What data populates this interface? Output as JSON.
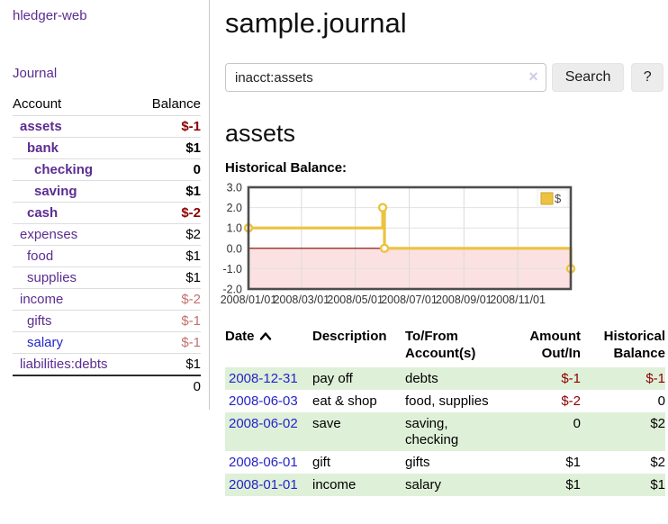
{
  "brand": "hledger-web",
  "nav": {
    "journal": "Journal"
  },
  "sidebar": {
    "account_col": "Account",
    "balance_col": "Balance",
    "accounts": [
      {
        "name": "assets",
        "depth": 1,
        "bold": true,
        "balance": "$-1",
        "tone": "neg-strong",
        "link_color": "purple"
      },
      {
        "name": "bank",
        "depth": 2,
        "bold": true,
        "balance": "$1",
        "tone": "normal",
        "link_color": "purple"
      },
      {
        "name": "checking",
        "depth": 3,
        "bold": true,
        "balance": "0",
        "tone": "normal",
        "link_color": "purple"
      },
      {
        "name": "saving",
        "depth": 3,
        "bold": true,
        "balance": "$1",
        "tone": "normal",
        "link_color": "purple"
      },
      {
        "name": "cash",
        "depth": 2,
        "bold": true,
        "balance": "$-2",
        "tone": "neg-strong",
        "link_color": "purple"
      },
      {
        "name": "expenses",
        "depth": 1,
        "bold": false,
        "balance": "$2",
        "tone": "normal",
        "link_color": "purple"
      },
      {
        "name": "food",
        "depth": 2,
        "bold": false,
        "balance": "$1",
        "tone": "normal",
        "link_color": "purple"
      },
      {
        "name": "supplies",
        "depth": 2,
        "bold": false,
        "balance": "$1",
        "tone": "normal",
        "link_color": "purple"
      },
      {
        "name": "income",
        "depth": 1,
        "bold": false,
        "balance": "$-2",
        "tone": "neg-soft",
        "link_color": "purple"
      },
      {
        "name": "gifts",
        "depth": 2,
        "bold": false,
        "balance": "$-1",
        "tone": "neg-soft",
        "link_color": "purple"
      },
      {
        "name": "salary",
        "depth": 2,
        "bold": false,
        "balance": "$-1",
        "tone": "neg-soft",
        "link_color": "blue"
      },
      {
        "name": "liabilities:debts",
        "depth": 1,
        "bold": false,
        "balance": "$1",
        "tone": "normal",
        "link_color": "purple"
      }
    ],
    "total": "0"
  },
  "main": {
    "title": "sample.journal",
    "search": {
      "value": "inacct:assets",
      "clear_icon": "×",
      "search_button": "Search",
      "help_button": "?"
    },
    "account_heading": "assets",
    "chart_title": "Historical Balance:",
    "register": {
      "headers": {
        "date": "Date",
        "description": "Description",
        "accounts": "To/From Account(s)",
        "amount": "Amount Out/In",
        "balance": "Historical Balance"
      },
      "rows": [
        {
          "date": "2008-12-31",
          "description": "pay off",
          "accounts": "debts",
          "amount": "$-1",
          "amount_neg": true,
          "balance": "$-1",
          "balance_neg": true
        },
        {
          "date": "2008-06-03",
          "description": "eat & shop",
          "accounts": "food, supplies",
          "amount": "$-2",
          "amount_neg": true,
          "balance": "0",
          "balance_neg": false
        },
        {
          "date": "2008-06-02",
          "description": "save",
          "accounts": "saving, checking",
          "amount": "0",
          "amount_neg": false,
          "balance": "$2",
          "balance_neg": false
        },
        {
          "date": "2008-06-01",
          "description": "gift",
          "accounts": "gifts",
          "amount": "$1",
          "amount_neg": false,
          "balance": "$2",
          "balance_neg": false
        },
        {
          "date": "2008-01-01",
          "description": "income",
          "accounts": "salary",
          "amount": "$1",
          "amount_neg": false,
          "balance": "$1",
          "balance_neg": false
        }
      ]
    }
  },
  "chart_data": {
    "type": "line",
    "step": true,
    "title": "Historical Balance",
    "x_start": "2008-01-01",
    "x_end": "2008-12-31",
    "ylim": [
      -2,
      3
    ],
    "yticks": [
      "3.0",
      "2.0",
      "1.0",
      "0.0",
      "-1.0",
      "-2.0"
    ],
    "ytick_values": [
      3,
      2,
      1,
      0,
      -1,
      -2
    ],
    "xtick_labels": [
      "2008/01/01",
      "2008/03/01",
      "2008/05/01",
      "2008/07/01",
      "2008/09/01",
      "2008/11/01"
    ],
    "series": [
      {
        "name": "$",
        "color": "#edc240",
        "points": [
          [
            "2008-01-01",
            1
          ],
          [
            "2008-06-01",
            2
          ],
          [
            "2008-06-02",
            2
          ],
          [
            "2008-06-03",
            0
          ],
          [
            "2008-12-31",
            -1
          ]
        ]
      }
    ],
    "legend_position": "top-right",
    "grid": true,
    "negative_fill": "#fbe1e1",
    "zero_line_color": "#8b0000"
  }
}
